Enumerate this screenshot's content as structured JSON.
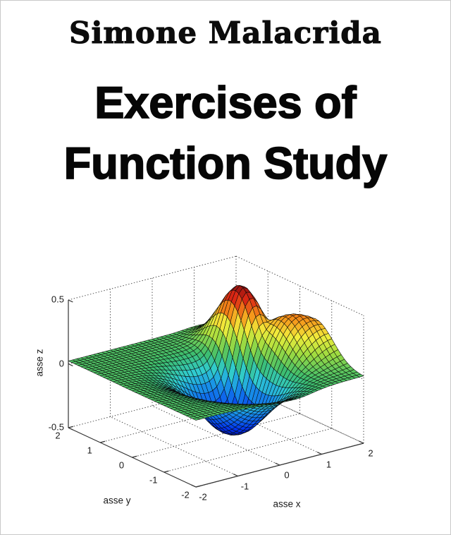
{
  "page": {
    "background": "#ffffff",
    "border_color": "#c9c9c9"
  },
  "author": "Simone Malacrida",
  "title": {
    "line1": "Exercises of",
    "line2": "Function Study"
  },
  "chart_data": {
    "type": "surface-3d",
    "style": "matlab-surf-jet",
    "title": "",
    "xlabel": "asse x",
    "ylabel": "asse y",
    "zlabel": "asse z",
    "x_range": [
      -2,
      2
    ],
    "y_range": [
      -2,
      2
    ],
    "z_range": [
      -0.5,
      0.5
    ],
    "x_ticks": [
      -2,
      -1,
      0,
      1,
      2
    ],
    "x_tick_labels": [
      "-2",
      "-1",
      "0",
      "1",
      "2"
    ],
    "y_ticks": [
      2,
      1,
      0,
      -1,
      -2
    ],
    "y_tick_labels": [
      "2",
      "1",
      "0",
      "-1",
      "-2"
    ],
    "z_ticks": [
      0.5,
      0,
      -0.5
    ],
    "z_tick_labels": [
      "0.5",
      "0",
      "-0.5"
    ],
    "grid": "dotted",
    "legend": "none",
    "view": {
      "azimuth": -37.5,
      "elevation": 30
    },
    "grid_step": 0.1,
    "surface_model": {
      "description": "flat plane at z=0 with steep plateau peaking +0.5 near (1.1,0.6), ridge trailing toward (2,-0.3), and deep basin reaching -0.5 near (0.4,-0.05)",
      "peaks": [
        {
          "type": "gauss",
          "amp": 0.54,
          "cx": 1.08,
          "cy": 0.62,
          "sx": 0.34,
          "sy": 0.55
        },
        {
          "type": "gauss-rot45",
          "amp": 0.34,
          "cx": 1.65,
          "cy": -0.3,
          "s_along": 0.85,
          "s_across": 0.45
        }
      ],
      "combine": "softmax",
      "softmax_eps": 0.045,
      "dip": {
        "amp": 0.55,
        "cx": 0.38,
        "cy": -0.05,
        "sx_left": 0.72,
        "sx_right": 0.4,
        "sy_front": 0.85,
        "sy_back": 0.5
      },
      "z_clamp": [
        -0.5,
        0.5
      ]
    },
    "colormap": [
      {
        "t": 0.0,
        "c": "#00108c"
      },
      {
        "t": 0.1,
        "c": "#0030f0"
      },
      {
        "t": 0.3,
        "c": "#1890e8"
      },
      {
        "t": 0.4,
        "c": "#30ccd0"
      },
      {
        "t": 0.5,
        "c": "#3dbd6d"
      },
      {
        "t": 0.62,
        "c": "#a0dc40"
      },
      {
        "t": 0.72,
        "c": "#f2ee3c"
      },
      {
        "t": 0.82,
        "c": "#f59018"
      },
      {
        "t": 0.92,
        "c": "#dc2814"
      },
      {
        "t": 1.0,
        "c": "#8c1010"
      }
    ],
    "edge_color": "#0a0a0a",
    "axis_color": "#333333",
    "grid_color": "#4a4a4a",
    "tick_color": "#1a1a1a"
  }
}
